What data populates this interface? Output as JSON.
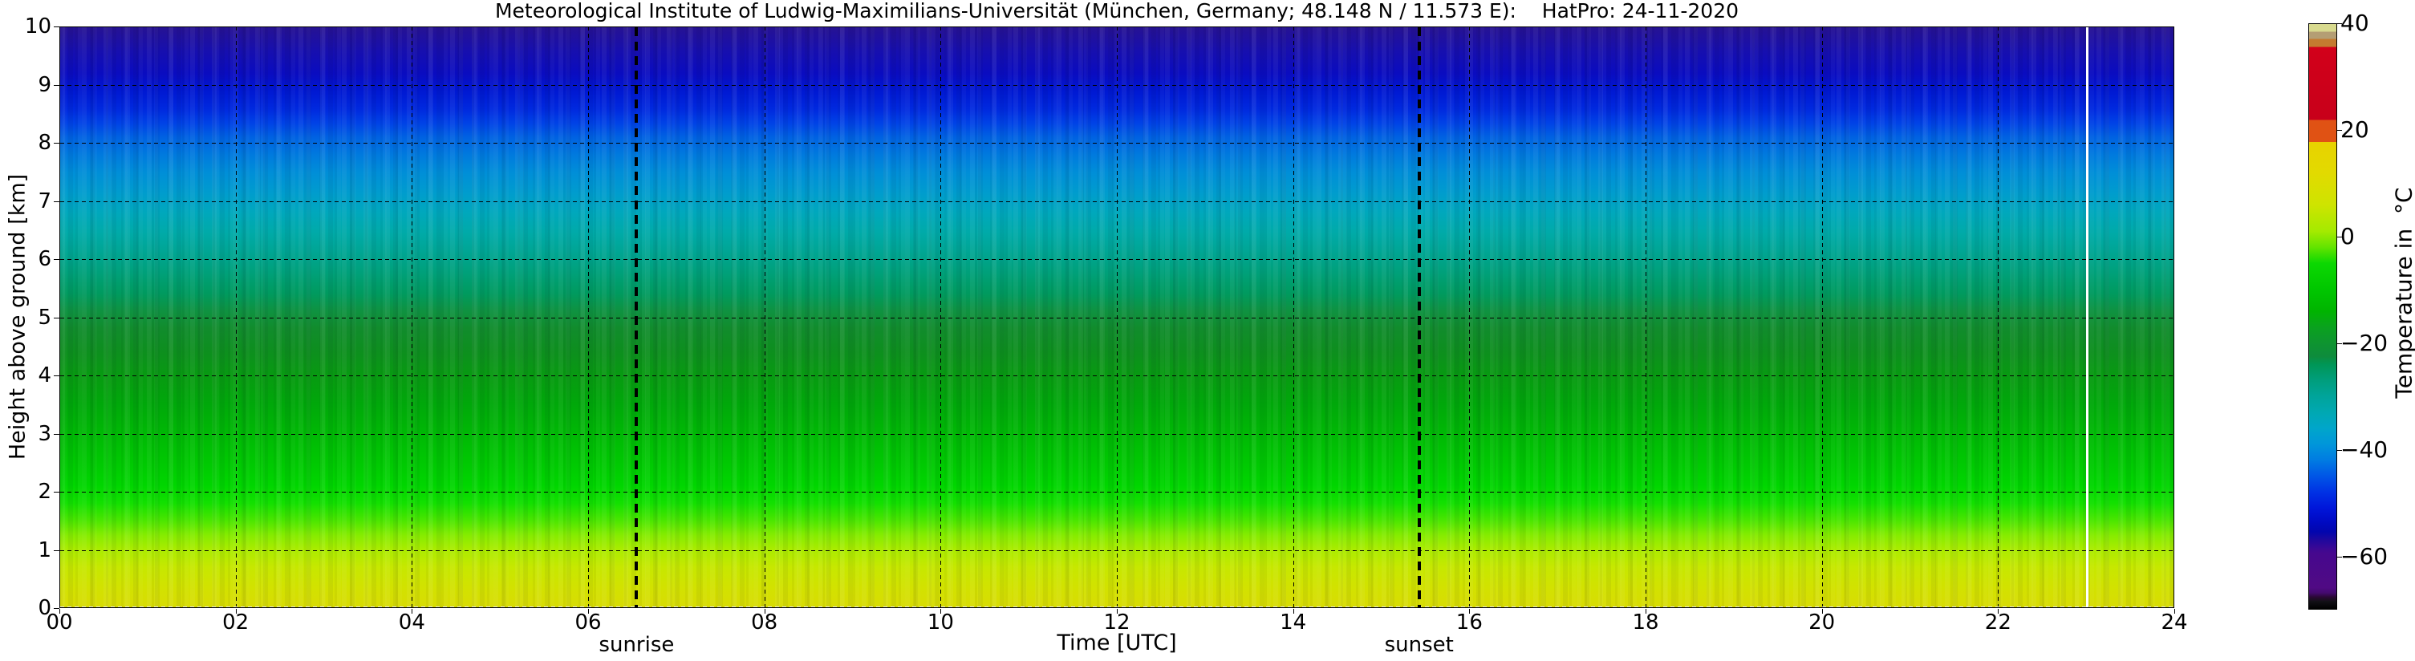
{
  "title": "Meteorological Institute of Ludwig-Maximilians-Universität (München, Germany; 48.148 N / 11.573 E):    HatPro: 24-11-2020",
  "chart_data": {
    "type": "heatmap",
    "title": "Meteorological Institute of Ludwig-Maximilians-Universität (München, Germany; 48.148 N / 11.573 E):    HatPro: 24-11-2020",
    "xlabel": "Time [UTC]",
    "ylabel": "Height above ground [km]",
    "xlim": [
      0,
      24
    ],
    "ylim": [
      0,
      10
    ],
    "grid": true,
    "x_ticks": [
      {
        "v": 0,
        "label": "00"
      },
      {
        "v": 2,
        "label": "02"
      },
      {
        "v": 4,
        "label": "04"
      },
      {
        "v": 6,
        "label": "06"
      },
      {
        "v": 8,
        "label": "08"
      },
      {
        "v": 10,
        "label": "10"
      },
      {
        "v": 12,
        "label": "12"
      },
      {
        "v": 14,
        "label": "14"
      },
      {
        "v": 16,
        "label": "16"
      },
      {
        "v": 18,
        "label": "18"
      },
      {
        "v": 20,
        "label": "20"
      },
      {
        "v": 22,
        "label": "22"
      },
      {
        "v": 24,
        "label": "24"
      }
    ],
    "y_ticks": [
      {
        "v": 0,
        "label": "0"
      },
      {
        "v": 1,
        "label": "1"
      },
      {
        "v": 2,
        "label": "2"
      },
      {
        "v": 3,
        "label": "3"
      },
      {
        "v": 4,
        "label": "4"
      },
      {
        "v": 5,
        "label": "5"
      },
      {
        "v": 6,
        "label": "6"
      },
      {
        "v": 7,
        "label": "7"
      },
      {
        "v": 8,
        "label": "8"
      },
      {
        "v": 9,
        "label": "9"
      },
      {
        "v": 10,
        "label": "10"
      }
    ],
    "x_gridlines": [
      2,
      4,
      6,
      8,
      10,
      12,
      14,
      16,
      18,
      20,
      22
    ],
    "y_gridlines": [
      1,
      2,
      3,
      4,
      5,
      6,
      7,
      8,
      9
    ],
    "annotations": [
      {
        "label": "sunrise",
        "time_utc": 6.55
      },
      {
        "label": "sunset",
        "time_utc": 15.43
      }
    ],
    "event_line": {
      "time_utc": 23.0,
      "color": "#ffffff"
    },
    "colorbar": {
      "label": "Temperature in  °C",
      "range": [
        -70,
        40
      ],
      "ticks": [
        {
          "v": 40,
          "label": "40"
        },
        {
          "v": 20,
          "label": "20"
        },
        {
          "v": 0,
          "label": "0"
        },
        {
          "v": -20,
          "label": "−20"
        },
        {
          "v": -40,
          "label": "−40"
        },
        {
          "v": -60,
          "label": "−60"
        }
      ],
      "stops": [
        {
          "t": 40.0,
          "color": "#d8da8e"
        },
        {
          "t": 38.6,
          "color": "#d8da8e"
        },
        {
          "t": 38.6,
          "color": "#b49e74"
        },
        {
          "t": 37.2,
          "color": "#b49e74"
        },
        {
          "t": 37.2,
          "color": "#c47a30"
        },
        {
          "t": 35.7,
          "color": "#c47a30"
        },
        {
          "t": 35.7,
          "color": "#d2001a"
        },
        {
          "t": 22.0,
          "color": "#c8001a"
        },
        {
          "t": 22.0,
          "color": "#e05214"
        },
        {
          "t": 17.8,
          "color": "#e05214"
        },
        {
          "t": 17.8,
          "color": "#e8d200"
        },
        {
          "t": 12.0,
          "color": "#e2da00"
        },
        {
          "t": 6.0,
          "color": "#cee400"
        },
        {
          "t": 1.0,
          "color": "#a4ea00"
        },
        {
          "t": -2.0,
          "color": "#62e400"
        },
        {
          "t": -5.0,
          "color": "#0cd802"
        },
        {
          "t": -10.0,
          "color": "#00c600"
        },
        {
          "t": -14.0,
          "color": "#00b400"
        },
        {
          "t": -17.0,
          "color": "#0aa21e"
        },
        {
          "t": -20.0,
          "color": "#0e9430"
        },
        {
          "t": -22.5,
          "color": "#0e8c3c"
        },
        {
          "t": -24.0,
          "color": "#009656"
        },
        {
          "t": -27.0,
          "color": "#009e7c"
        },
        {
          "t": -30.0,
          "color": "#00a49a"
        },
        {
          "t": -33.0,
          "color": "#00a8b2"
        },
        {
          "t": -36.0,
          "color": "#00a6ca"
        },
        {
          "t": -39.0,
          "color": "#0096da"
        },
        {
          "t": -42.0,
          "color": "#007ce2"
        },
        {
          "t": -45.0,
          "color": "#0056e6"
        },
        {
          "t": -48.0,
          "color": "#0032e4"
        },
        {
          "t": -51.0,
          "color": "#0016da"
        },
        {
          "t": -53.5,
          "color": "#000ac4"
        },
        {
          "t": -55.5,
          "color": "#0206ae"
        },
        {
          "t": -57.0,
          "color": "#1e089e"
        },
        {
          "t": -58.5,
          "color": "#380896"
        },
        {
          "t": -59.5,
          "color": "#46088e"
        },
        {
          "t": -66.0,
          "color": "#500a84"
        },
        {
          "t": -67.0,
          "color": "#440a6e"
        },
        {
          "t": -67.8,
          "color": "#2a0834"
        },
        {
          "t": -68.6,
          "color": "#121016"
        },
        {
          "t": -70.0,
          "color": "#000000"
        }
      ]
    },
    "field_gradient_by_height": [
      {
        "km": 10.0,
        "color": "#261293"
      },
      {
        "km": 9.6,
        "color": "#170fae"
      },
      {
        "km": 9.2,
        "color": "#0a0cc0"
      },
      {
        "km": 8.9,
        "color": "#0018d2"
      },
      {
        "km": 8.6,
        "color": "#0028de"
      },
      {
        "km": 8.35,
        "color": "#0042e6"
      },
      {
        "km": 8.1,
        "color": "#0062e2"
      },
      {
        "km": 7.8,
        "color": "#007ade"
      },
      {
        "km": 7.5,
        "color": "#008ed8"
      },
      {
        "km": 7.15,
        "color": "#009cce"
      },
      {
        "km": 6.8,
        "color": "#00a8bc"
      },
      {
        "km": 6.45,
        "color": "#00aaa8"
      },
      {
        "km": 6.1,
        "color": "#00a592"
      },
      {
        "km": 5.75,
        "color": "#00a078"
      },
      {
        "km": 5.4,
        "color": "#009a5e"
      },
      {
        "km": 5.1,
        "color": "#0f9240"
      },
      {
        "km": 4.8,
        "color": "#118c2c"
      },
      {
        "km": 4.4,
        "color": "#0d8f1e"
      },
      {
        "km": 4.0,
        "color": "#089a12"
      },
      {
        "km": 3.5,
        "color": "#00a80a"
      },
      {
        "km": 3.0,
        "color": "#00b805"
      },
      {
        "km": 2.5,
        "color": "#00c802"
      },
      {
        "km": 2.1,
        "color": "#00d600"
      },
      {
        "km": 1.8,
        "color": "#12e000"
      },
      {
        "km": 1.5,
        "color": "#4ae600"
      },
      {
        "km": 1.25,
        "color": "#84ec00"
      },
      {
        "km": 1.0,
        "color": "#aaec00"
      },
      {
        "km": 0.7,
        "color": "#c6e800"
      },
      {
        "km": 0.35,
        "color": "#d2e200"
      },
      {
        "km": 0.0,
        "color": "#d8dc04"
      }
    ],
    "profile_heights_km": [
      0,
      0.5,
      1,
      1.5,
      2,
      2.5,
      3,
      3.5,
      4,
      4.5,
      5,
      5.5,
      6,
      6.5,
      7,
      7.5,
      8,
      8.5,
      9,
      9.5,
      10
    ],
    "profile_temps_c": [
      7,
      5,
      3,
      0,
      -3,
      -6,
      -9,
      -12,
      -15,
      -18,
      -20,
      -24,
      -28,
      -32,
      -36,
      -40,
      -43,
      -48,
      -52,
      -55,
      -58
    ],
    "description": "Time-height temperature cross-section from HATPRO microwave radiometer; field is nearly constant in time, temperature decreases with height from ~7°C at ground to ~-58°C at 10 km; vertical dashed lines mark sunrise (~06:33 UTC) and sunset (~15:26 UTC); solid white vertical line at ~23:00 UTC."
  }
}
